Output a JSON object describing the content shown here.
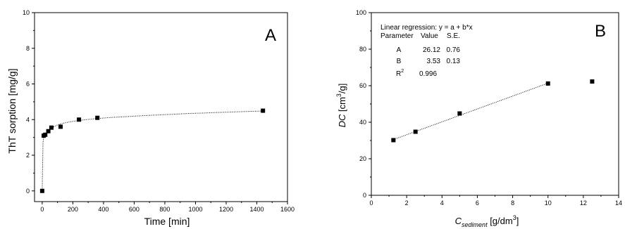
{
  "chart_data": [
    {
      "type": "scatter",
      "panel_label": "A",
      "xlabel": "Time [min]",
      "ylabel": "ThT sorption [mg/g]",
      "xlim": [
        -50,
        1600
      ],
      "ylim": [
        -0.6,
        10
      ],
      "xticks": [
        0,
        200,
        400,
        600,
        800,
        1000,
        1200,
        1400,
        1600
      ],
      "yticks": [
        0,
        2,
        4,
        6,
        8,
        10
      ],
      "grid": false,
      "series": [
        {
          "marker": "square",
          "x": [
            0,
            10,
            20,
            40,
            60,
            120,
            240,
            360,
            1440
          ],
          "y": [
            0.0,
            3.1,
            3.15,
            3.35,
            3.55,
            3.6,
            4.0,
            4.1,
            4.5
          ]
        }
      ],
      "fit_line": {
        "style": "dotted",
        "x": [
          0,
          5,
          10,
          20,
          30,
          40,
          60,
          80,
          100,
          120,
          160,
          200,
          240,
          300,
          360,
          450,
          550,
          650,
          750,
          850,
          950,
          1050,
          1150,
          1250,
          1350,
          1440
        ],
        "y": [
          0.0,
          2.7,
          3.05,
          3.2,
          3.3,
          3.38,
          3.52,
          3.62,
          3.7,
          3.76,
          3.84,
          3.9,
          3.95,
          4.01,
          4.06,
          4.12,
          4.17,
          4.22,
          4.26,
          4.3,
          4.34,
          4.37,
          4.4,
          4.43,
          4.46,
          4.48
        ]
      }
    },
    {
      "type": "scatter",
      "panel_label": "B",
      "ylabel_italic": "DC",
      "ylabel_rest": " [cm",
      "ylabel_sup": "3",
      "ylabel_end": "/g]",
      "xlabel_main": "C",
      "xlabel_sub": "sediment",
      "xlabel_rest": " [g/dm",
      "xlabel_sup": "3",
      "xlabel_end": "]",
      "xlim": [
        0,
        14
      ],
      "ylim": [
        0,
        100
      ],
      "xticks": [
        0,
        2,
        4,
        6,
        8,
        10,
        12,
        14
      ],
      "yticks": [
        0,
        20,
        40,
        60,
        80,
        100
      ],
      "grid": false,
      "series": [
        {
          "marker": "square",
          "x": [
            1.25,
            2.5,
            5.0,
            10.0,
            12.5
          ],
          "y": [
            30.2,
            34.8,
            44.8,
            61.2,
            62.3
          ]
        }
      ],
      "fit_line": {
        "style": "dotted",
        "x": [
          1.25,
          10.0
        ],
        "y": [
          30.5,
          61.4
        ]
      },
      "regression_table": {
        "equation": "Linear regression: y = a + b*x",
        "headers": [
          "Parameter",
          "Value",
          "S.E."
        ],
        "rows": [
          [
            "A",
            "26.12",
            "0.76"
          ],
          [
            "B",
            "3.53",
            "0.13"
          ]
        ],
        "r2_label": "R",
        "r2_sup": "2",
        "r2_value": "0.996"
      }
    }
  ]
}
